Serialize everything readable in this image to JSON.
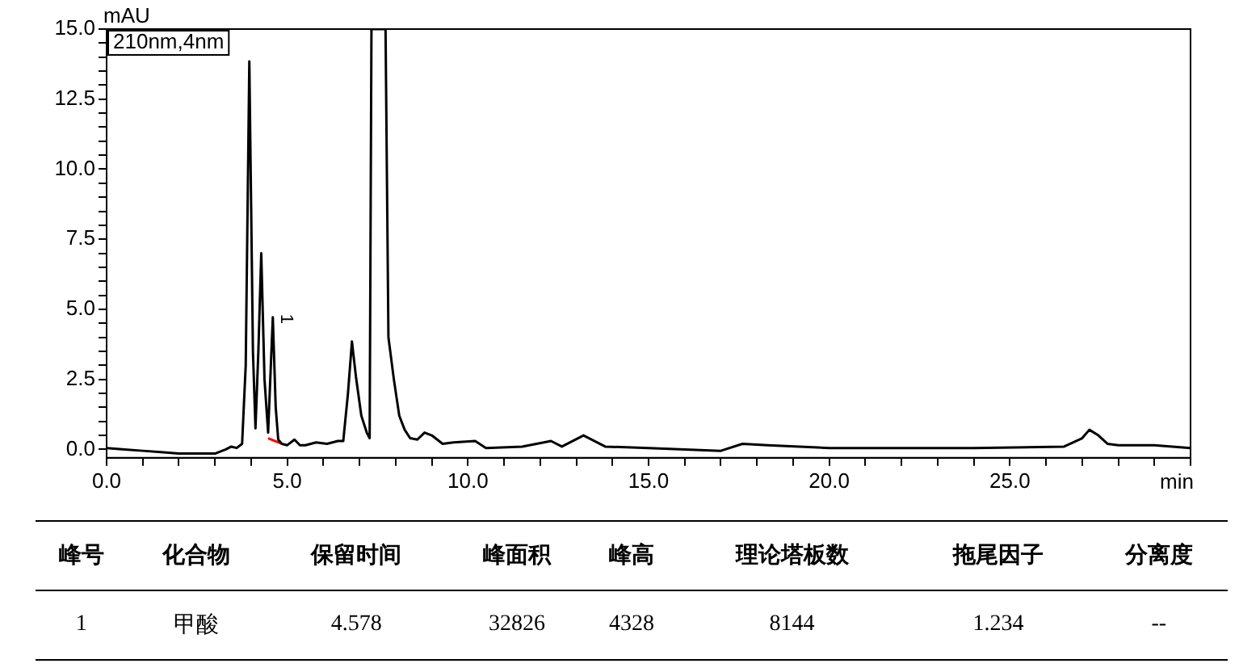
{
  "chart_data": {
    "type": "line",
    "xlabel": "min",
    "ylabel": "mAU",
    "xlim": [
      0,
      30
    ],
    "ylim": [
      -0.3,
      15
    ],
    "xticks": [
      {
        "value": 0,
        "label": "0.0"
      },
      {
        "value": 1,
        "label": null
      },
      {
        "value": 2,
        "label": null
      },
      {
        "value": 3,
        "label": null
      },
      {
        "value": 4,
        "label": null
      },
      {
        "value": 5,
        "label": "5.0"
      },
      {
        "value": 6,
        "label": null
      },
      {
        "value": 7,
        "label": null
      },
      {
        "value": 8,
        "label": null
      },
      {
        "value": 9,
        "label": null
      },
      {
        "value": 10,
        "label": "10.0"
      },
      {
        "value": 11,
        "label": null
      },
      {
        "value": 12,
        "label": null
      },
      {
        "value": 13,
        "label": null
      },
      {
        "value": 14,
        "label": null
      },
      {
        "value": 15,
        "label": "15.0"
      },
      {
        "value": 16,
        "label": null
      },
      {
        "value": 17,
        "label": null
      },
      {
        "value": 18,
        "label": null
      },
      {
        "value": 19,
        "label": null
      },
      {
        "value": 20,
        "label": "20.0"
      },
      {
        "value": 21,
        "label": null
      },
      {
        "value": 22,
        "label": null
      },
      {
        "value": 23,
        "label": null
      },
      {
        "value": 24,
        "label": null
      },
      {
        "value": 25,
        "label": "25.0"
      },
      {
        "value": 26,
        "label": null
      },
      {
        "value": 27,
        "label": null
      },
      {
        "value": 28,
        "label": null
      },
      {
        "value": 29,
        "label": null
      },
      {
        "value": 30,
        "label": null
      }
    ],
    "yticks": [
      {
        "value": 0,
        "label": "0.0"
      },
      {
        "value": 0.5,
        "label": null
      },
      {
        "value": 1,
        "label": null
      },
      {
        "value": 1.5,
        "label": null
      },
      {
        "value": 2,
        "label": null
      },
      {
        "value": 2.5,
        "label": "2.5"
      },
      {
        "value": 3,
        "label": null
      },
      {
        "value": 3.5,
        "label": null
      },
      {
        "value": 4,
        "label": null
      },
      {
        "value": 4.5,
        "label": null
      },
      {
        "value": 5,
        "label": "5.0"
      },
      {
        "value": 5.5,
        "label": null
      },
      {
        "value": 6,
        "label": null
      },
      {
        "value": 6.5,
        "label": null
      },
      {
        "value": 7,
        "label": null
      },
      {
        "value": 7.5,
        "label": "7.5"
      },
      {
        "value": 8,
        "label": null
      },
      {
        "value": 8.5,
        "label": null
      },
      {
        "value": 9,
        "label": null
      },
      {
        "value": 9.5,
        "label": null
      },
      {
        "value": 10,
        "label": "10.0"
      },
      {
        "value": 10.5,
        "label": null
      },
      {
        "value": 11,
        "label": null
      },
      {
        "value": 11.5,
        "label": null
      },
      {
        "value": 12,
        "label": null
      },
      {
        "value": 12.5,
        "label": "12.5"
      },
      {
        "value": 13,
        "label": null
      },
      {
        "value": 13.5,
        "label": null
      },
      {
        "value": 14,
        "label": null
      },
      {
        "value": 14.5,
        "label": null
      },
      {
        "value": 15,
        "label": "15.0"
      }
    ],
    "grid": false,
    "legend": false,
    "marker": "none",
    "line_style": "solid",
    "series": [
      {
        "color": "#000000",
        "x": [
          0,
          0.5,
          1,
          1.5,
          2,
          2.5,
          3,
          3.3,
          3.45,
          3.6,
          3.75,
          3.85,
          3.95,
          4.05,
          4.12,
          4.2,
          4.28,
          4.37,
          4.47,
          4.53,
          4.6,
          4.68,
          4.75,
          4.85,
          5.0,
          5.2,
          5.35,
          5.5,
          5.8,
          6.1,
          6.4,
          6.55,
          6.68,
          6.79,
          6.9,
          7.05,
          7.2,
          7.28,
          7.33,
          7.72,
          7.8,
          7.95,
          8.1,
          8.25,
          8.4,
          8.6,
          8.8,
          9.0,
          9.3,
          9.6,
          10.2,
          10.5,
          11.5,
          12.3,
          12.6,
          13.2,
          13.8,
          15,
          17,
          17.6,
          18.3,
          20,
          24,
          26.5,
          27.0,
          27.2,
          27.45,
          27.7,
          28,
          29,
          30
        ],
        "values": [
          0.05,
          0.0,
          -0.05,
          -0.1,
          -0.15,
          -0.15,
          -0.15,
          0.0,
          0.1,
          0.05,
          0.2,
          3.0,
          13.85,
          3.5,
          0.75,
          3.5,
          7.0,
          2.5,
          0.6,
          2.5,
          4.72,
          1.5,
          0.35,
          0.2,
          0.15,
          0.35,
          0.15,
          0.15,
          0.25,
          0.2,
          0.3,
          0.3,
          2.0,
          3.85,
          2.6,
          1.2,
          0.6,
          0.4,
          15,
          15,
          4.0,
          2.5,
          1.2,
          0.7,
          0.4,
          0.35,
          0.6,
          0.5,
          0.2,
          0.25,
          0.3,
          0.05,
          0.1,
          0.3,
          0.1,
          0.5,
          0.1,
          0.05,
          -0.05,
          0.2,
          0.15,
          0.05,
          0.05,
          0.1,
          0.4,
          0.7,
          0.5,
          0.2,
          0.15,
          0.15,
          0.05
        ]
      },
      {
        "color": "#ff0000",
        "x": [
          4.47,
          4.85
        ],
        "values": [
          0.4,
          0.2
        ]
      }
    ],
    "annotations": [
      "210nm,4nm",
      {
        "text": "1",
        "x": 4.6,
        "y": 4.72
      },
      "峰号",
      "化合物",
      "保留时间",
      "峰面积",
      "峰高",
      "理论塔板数",
      "拖尾因子",
      "分离度",
      "1",
      "甲酸",
      "4.578",
      "32826",
      "4328",
      "8144",
      "1.234",
      "--"
    ]
  }
}
